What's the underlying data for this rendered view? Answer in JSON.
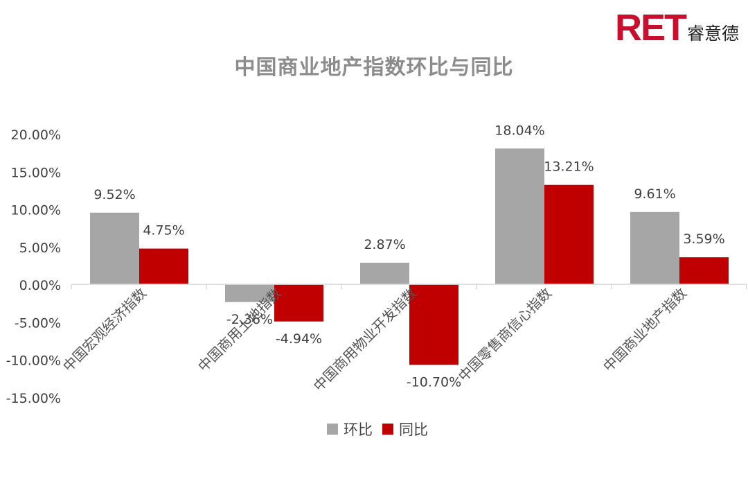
{
  "brand": {
    "logo_text": "RET",
    "logo_cn": "睿意德"
  },
  "colors": {
    "series_a": "#a6a6a6",
    "series_b": "#c00000",
    "axis": "#d9d9d9",
    "text": "#404040"
  },
  "chart_data": {
    "type": "bar",
    "title": "中国商业地产指数环比与同比",
    "xlabel": "",
    "ylabel": "",
    "categories": [
      "中国宏观经济指数",
      "中国商用土地指数",
      "中国商用物业开发指数",
      "中国零售商信心指数",
      "中国商业地产指数"
    ],
    "series": [
      {
        "name": "环比",
        "values": [
          9.52,
          -2.36,
          2.87,
          18.04,
          9.61
        ],
        "labels": [
          "9.52%",
          "-2.36%",
          "2.87%",
          "18.04%",
          "9.61%"
        ]
      },
      {
        "name": "同比",
        "values": [
          4.75,
          -4.94,
          -10.7,
          13.21,
          3.59
        ],
        "labels": [
          "4.75%",
          "-4.94%",
          "-10.70%",
          "13.21%",
          "3.59%"
        ]
      }
    ],
    "ylim": [
      -15,
      20
    ],
    "yticks": [
      20,
      15,
      10,
      5,
      0,
      -5,
      -10,
      -15
    ],
    "ytick_labels": [
      "20.00%",
      "15.00%",
      "10.00%",
      "5.00%",
      "0.00%",
      "-5.00%",
      "-10.00%",
      "-15.00%"
    ],
    "grid": false,
    "legend_position": "bottom"
  }
}
